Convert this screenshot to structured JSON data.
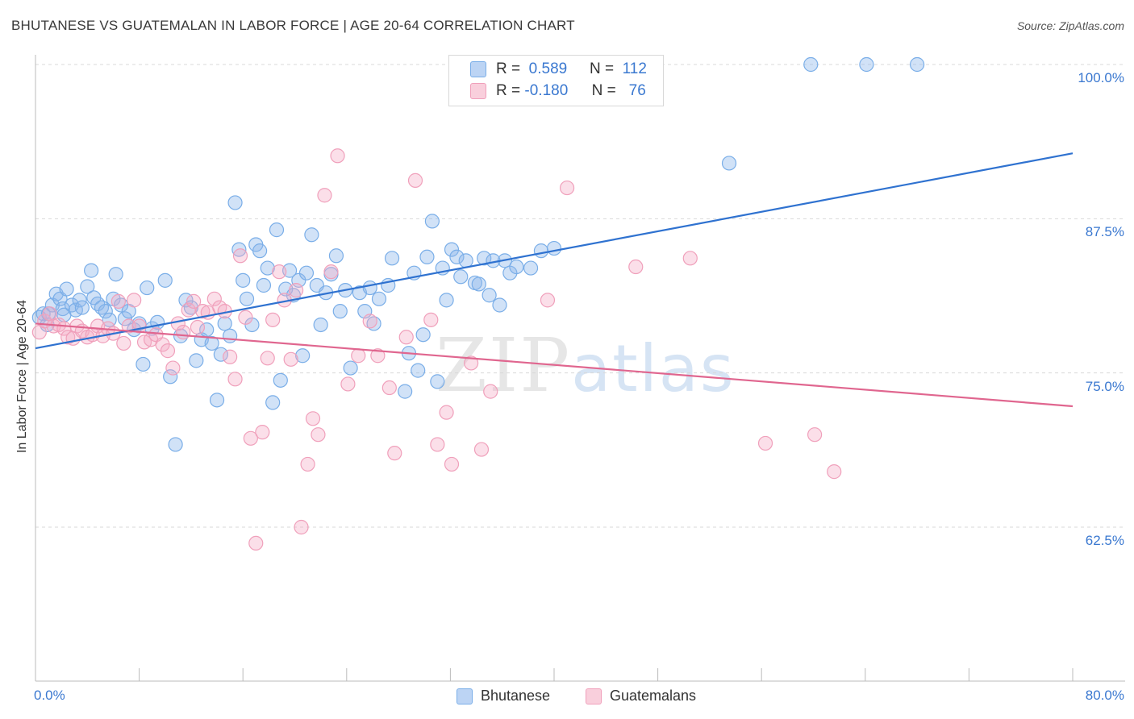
{
  "title": "BHUTANESE VS GUATEMALAN IN LABOR FORCE | AGE 20-64 CORRELATION CHART",
  "source": "Source: ZipAtlas.com",
  "watermark": {
    "zip": "ZIP",
    "atlas": "atlas"
  },
  "legend": {
    "rows": [
      {
        "r_label": "R =",
        "r_value": "0.589",
        "n_label": "N =",
        "n_value": "112",
        "color": "#7aaee8"
      },
      {
        "r_label": "R =",
        "r_value": "-0.180",
        "n_label": "N =",
        "n_value": "76",
        "color": "#f0a0bb"
      }
    ]
  },
  "chart_data": {
    "type": "scatter",
    "title": "BHUTANESE VS GUATEMALAN IN LABOR FORCE | AGE 20-64 CORRELATION CHART",
    "xlabel": "",
    "ylabel": "In Labor Force | Age 20-64",
    "xlim": [
      0,
      80
    ],
    "ylim": [
      50,
      100
    ],
    "x_tick_labels": [
      "0.0%",
      "80.0%"
    ],
    "y_ticks": [
      62.5,
      75.0,
      87.5,
      100.0
    ],
    "y_tick_labels": [
      "62.5%",
      "75.0%",
      "87.5%",
      "100.0%"
    ],
    "grid": "horizontal dashed",
    "legend_position": "top-center",
    "series": [
      {
        "name": "Bhutanese",
        "color": "#7aaee8",
        "line_color": "#2f72d0",
        "trend": {
          "x": [
            0,
            80
          ],
          "y": [
            77.0,
            92.8
          ]
        },
        "points": [
          [
            0.3,
            79.5
          ],
          [
            0.6,
            79.8
          ],
          [
            0.9,
            78.9
          ],
          [
            1.0,
            79.8
          ],
          [
            1.3,
            80.5
          ],
          [
            1.6,
            81.4
          ],
          [
            1.9,
            81.0
          ],
          [
            2.1,
            80.2
          ],
          [
            2.2,
            79.7
          ],
          [
            2.4,
            81.8
          ],
          [
            2.8,
            80.5
          ],
          [
            3.1,
            80.1
          ],
          [
            3.4,
            80.9
          ],
          [
            3.6,
            80.3
          ],
          [
            4.0,
            82.0
          ],
          [
            4.3,
            83.3
          ],
          [
            4.5,
            81.1
          ],
          [
            4.8,
            80.6
          ],
          [
            5.1,
            80.3
          ],
          [
            5.4,
            80.0
          ],
          [
            5.7,
            79.3
          ],
          [
            6.0,
            81.0
          ],
          [
            6.2,
            83.0
          ],
          [
            6.6,
            80.5
          ],
          [
            6.9,
            79.4
          ],
          [
            7.2,
            80.0
          ],
          [
            7.6,
            78.5
          ],
          [
            8.0,
            79.0
          ],
          [
            8.3,
            75.7
          ],
          [
            8.6,
            81.9
          ],
          [
            9.0,
            78.6
          ],
          [
            9.4,
            79.1
          ],
          [
            10.0,
            82.5
          ],
          [
            10.4,
            74.7
          ],
          [
            10.8,
            69.2
          ],
          [
            11.2,
            78.0
          ],
          [
            11.6,
            80.9
          ],
          [
            12.0,
            80.3
          ],
          [
            12.4,
            76.0
          ],
          [
            12.8,
            77.7
          ],
          [
            13.2,
            78.5
          ],
          [
            13.6,
            77.4
          ],
          [
            14.0,
            72.8
          ],
          [
            14.3,
            76.5
          ],
          [
            14.6,
            79.0
          ],
          [
            15.0,
            78.0
          ],
          [
            15.4,
            88.8
          ],
          [
            15.7,
            85.0
          ],
          [
            16.0,
            82.5
          ],
          [
            16.3,
            81.0
          ],
          [
            16.7,
            78.9
          ],
          [
            17.0,
            85.4
          ],
          [
            17.3,
            84.9
          ],
          [
            17.6,
            82.1
          ],
          [
            17.9,
            83.5
          ],
          [
            18.3,
            72.6
          ],
          [
            18.6,
            86.6
          ],
          [
            18.9,
            74.4
          ],
          [
            19.3,
            81.8
          ],
          [
            19.6,
            83.3
          ],
          [
            19.9,
            81.3
          ],
          [
            20.3,
            82.5
          ],
          [
            20.6,
            76.4
          ],
          [
            20.9,
            83.1
          ],
          [
            21.3,
            86.2
          ],
          [
            21.7,
            82.1
          ],
          [
            22.0,
            78.9
          ],
          [
            22.4,
            81.5
          ],
          [
            22.8,
            83.0
          ],
          [
            23.2,
            84.5
          ],
          [
            23.5,
            80.0
          ],
          [
            23.9,
            81.7
          ],
          [
            24.3,
            75.4
          ],
          [
            25.0,
            81.5
          ],
          [
            25.4,
            80.0
          ],
          [
            25.8,
            81.9
          ],
          [
            26.1,
            79.0
          ],
          [
            26.5,
            81.0
          ],
          [
            27.2,
            82.1
          ],
          [
            27.5,
            84.3
          ],
          [
            28.5,
            73.5
          ],
          [
            28.8,
            76.6
          ],
          [
            29.2,
            83.1
          ],
          [
            29.5,
            75.2
          ],
          [
            29.9,
            78.1
          ],
          [
            30.2,
            84.4
          ],
          [
            30.6,
            87.3
          ],
          [
            31.0,
            74.3
          ],
          [
            31.4,
            83.5
          ],
          [
            31.7,
            80.9
          ],
          [
            32.1,
            85.0
          ],
          [
            32.5,
            84.4
          ],
          [
            32.8,
            82.8
          ],
          [
            33.2,
            84.1
          ],
          [
            33.9,
            82.3
          ],
          [
            34.2,
            82.2
          ],
          [
            34.6,
            84.3
          ],
          [
            35.0,
            81.3
          ],
          [
            35.3,
            84.1
          ],
          [
            35.8,
            80.5
          ],
          [
            36.2,
            84.1
          ],
          [
            36.6,
            83.1
          ],
          [
            37.1,
            83.6
          ],
          [
            38.2,
            83.5
          ],
          [
            39.0,
            84.9
          ],
          [
            40.0,
            85.1
          ],
          [
            53.5,
            92.0
          ],
          [
            59.8,
            100.0
          ],
          [
            64.1,
            100.0
          ],
          [
            68.0,
            100.0
          ]
        ]
      },
      {
        "name": "Guatemalans",
        "color": "#f0a0bb",
        "line_color": "#e0668f",
        "trend": {
          "x": [
            0,
            80
          ],
          "y": [
            79.0,
            72.3
          ]
        },
        "points": [
          [
            0.3,
            78.3
          ],
          [
            0.7,
            79.2
          ],
          [
            1.1,
            79.8
          ],
          [
            1.4,
            78.8
          ],
          [
            1.8,
            78.9
          ],
          [
            2.2,
            78.6
          ],
          [
            2.5,
            77.9
          ],
          [
            2.9,
            77.8
          ],
          [
            3.2,
            78.8
          ],
          [
            3.6,
            78.4
          ],
          [
            4.0,
            77.9
          ],
          [
            4.4,
            78.1
          ],
          [
            4.8,
            78.8
          ],
          [
            5.2,
            78.0
          ],
          [
            5.6,
            78.6
          ],
          [
            6.0,
            78.2
          ],
          [
            6.4,
            80.8
          ],
          [
            6.8,
            77.4
          ],
          [
            7.2,
            78.8
          ],
          [
            7.6,
            80.9
          ],
          [
            8.0,
            78.8
          ],
          [
            8.4,
            77.5
          ],
          [
            8.9,
            77.7
          ],
          [
            9.3,
            78.1
          ],
          [
            9.8,
            77.3
          ],
          [
            10.2,
            76.8
          ],
          [
            10.6,
            75.4
          ],
          [
            11.0,
            79.0
          ],
          [
            11.4,
            78.3
          ],
          [
            11.8,
            80.1
          ],
          [
            12.2,
            80.8
          ],
          [
            12.5,
            78.7
          ],
          [
            12.9,
            80.0
          ],
          [
            13.3,
            79.9
          ],
          [
            13.8,
            81.0
          ],
          [
            14.2,
            80.3
          ],
          [
            14.6,
            80.0
          ],
          [
            15.0,
            76.3
          ],
          [
            15.4,
            74.5
          ],
          [
            15.8,
            84.5
          ],
          [
            16.2,
            79.5
          ],
          [
            16.6,
            69.7
          ],
          [
            17.0,
            61.2
          ],
          [
            17.5,
            70.2
          ],
          [
            17.9,
            76.2
          ],
          [
            18.3,
            79.3
          ],
          [
            18.8,
            83.2
          ],
          [
            19.2,
            80.9
          ],
          [
            19.7,
            76.1
          ],
          [
            20.1,
            81.7
          ],
          [
            20.5,
            62.5
          ],
          [
            21.0,
            67.6
          ],
          [
            21.4,
            71.3
          ],
          [
            21.8,
            70.0
          ],
          [
            22.3,
            89.4
          ],
          [
            22.8,
            83.2
          ],
          [
            23.3,
            92.6
          ],
          [
            24.1,
            74.1
          ],
          [
            24.9,
            76.4
          ],
          [
            25.8,
            79.2
          ],
          [
            26.4,
            76.4
          ],
          [
            27.3,
            73.8
          ],
          [
            27.7,
            68.5
          ],
          [
            28.6,
            77.9
          ],
          [
            29.3,
            90.6
          ],
          [
            30.5,
            79.3
          ],
          [
            31.0,
            69.2
          ],
          [
            31.7,
            71.8
          ],
          [
            32.1,
            67.6
          ],
          [
            33.6,
            75.8
          ],
          [
            34.4,
            68.8
          ],
          [
            35.1,
            73.5
          ],
          [
            39.5,
            80.9
          ],
          [
            41.0,
            90.0
          ],
          [
            46.3,
            83.6
          ],
          [
            50.5,
            84.3
          ],
          [
            56.3,
            69.3
          ],
          [
            60.1,
            70.0
          ],
          [
            61.6,
            67.0
          ]
        ]
      }
    ]
  },
  "bottom_legend": [
    {
      "label": "Bhutanese",
      "color": "#7aaee8"
    },
    {
      "label": "Guatemalans",
      "color": "#f0a0bb"
    }
  ]
}
